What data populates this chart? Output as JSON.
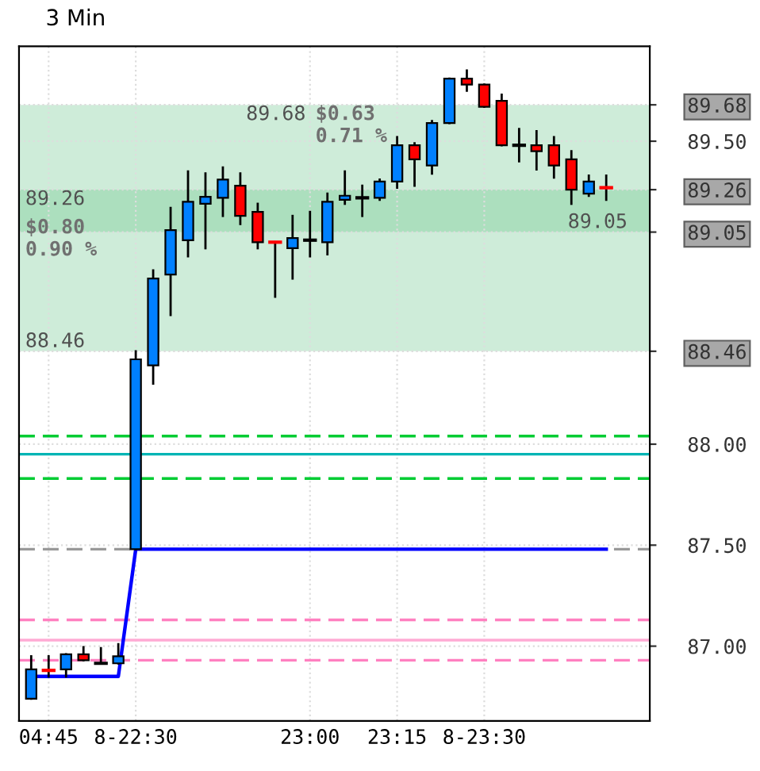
{
  "chart_data": {
    "type": "candlestick",
    "title": "3 Min",
    "categories": [
      null,
      "04:45",
      null,
      null,
      null,
      null,
      "8-22:30",
      null,
      null,
      null,
      null,
      null,
      null,
      null,
      null,
      null,
      "23:00",
      null,
      null,
      null,
      null,
      "23:15",
      null,
      null,
      null,
      null,
      "8-23:30",
      null,
      null,
      null,
      null,
      null,
      null,
      null
    ],
    "series": [
      {
        "type": "line",
        "color": "#0000ff",
        "values": [
          86.85,
          86.85,
          86.85,
          86.85,
          86.85,
          86.85,
          87.48,
          87.48,
          87.48,
          87.48,
          87.48,
          87.48,
          87.48,
          87.48,
          87.48,
          87.48,
          87.48,
          87.48,
          87.48,
          87.48,
          87.48,
          87.48,
          87.48,
          87.48,
          87.48,
          87.48,
          87.48,
          87.48,
          87.48,
          87.48,
          87.48,
          87.48,
          87.48,
          87.48
        ]
      },
      {
        "type": "candlestick",
        "ohlc": [
          [
            86.74,
            86.95,
            86.74,
            86.885
          ],
          [
            86.88,
            86.95,
            86.85,
            86.88
          ],
          [
            86.885,
            86.96,
            86.85,
            86.96
          ],
          [
            86.96,
            86.995,
            86.93,
            86.93
          ],
          [
            86.915,
            86.99,
            86.915,
            86.915
          ],
          [
            86.915,
            87.01,
            86.915,
            86.95
          ],
          [
            87.48,
            88.46,
            87.48,
            88.42
          ],
          [
            88.39,
            88.86,
            88.3,
            88.82
          ],
          [
            88.84,
            89.17,
            88.64,
            89.06
          ],
          [
            89.01,
            89.35,
            88.93,
            89.2
          ],
          [
            89.19,
            89.34,
            88.97,
            89.225
          ],
          [
            89.22,
            89.37,
            89.13,
            89.31
          ],
          [
            89.28,
            89.34,
            89.09,
            89.13
          ],
          [
            89.15,
            89.19,
            88.97,
            89.0
          ],
          [
            89.0,
            89.0,
            88.73,
            89.0
          ],
          [
            88.97,
            89.13,
            88.82,
            89.02
          ],
          [
            89.01,
            89.15,
            88.93,
            89.01
          ],
          [
            89.0,
            89.24,
            88.94,
            89.2
          ],
          [
            89.21,
            89.35,
            89.19,
            89.23
          ],
          [
            89.22,
            89.28,
            89.13,
            89.22
          ],
          [
            89.22,
            89.31,
            89.21,
            89.3
          ],
          [
            89.3,
            89.52,
            89.27,
            89.48
          ],
          [
            89.48,
            89.49,
            89.28,
            89.41
          ],
          [
            89.38,
            89.6,
            89.34,
            89.59
          ],
          [
            89.59,
            89.81,
            89.59,
            89.81
          ],
          [
            89.81,
            89.85,
            89.75,
            89.78
          ],
          [
            89.78,
            89.78,
            89.67,
            89.67
          ],
          [
            89.7,
            89.73,
            89.48,
            89.48
          ],
          [
            89.48,
            89.56,
            89.4,
            89.48
          ],
          [
            89.48,
            89.55,
            89.36,
            89.45
          ],
          [
            89.48,
            89.52,
            89.32,
            89.38
          ],
          [
            89.41,
            89.45,
            89.19,
            89.26
          ],
          [
            89.24,
            89.33,
            89.23,
            89.3
          ],
          [
            89.27,
            89.33,
            89.21,
            89.27
          ]
        ],
        "colors": [
          "#0080ff",
          "#ff0000",
          "#0080ff",
          "#ff0000",
          "#000000",
          "#0080ff",
          "#0080ff",
          "#0080ff",
          "#0080ff",
          "#0080ff",
          "#0080ff",
          "#0080ff",
          "#ff0000",
          "#ff0000",
          "#ff0000",
          "#0080ff",
          "#000000",
          "#0080ff",
          "#0080ff",
          "#000000",
          "#0080ff",
          "#0080ff",
          "#ff0000",
          "#0080ff",
          "#0080ff",
          "#ff0000",
          "#ff0000",
          "#ff0000",
          "#000000",
          "#ff0000",
          "#ff0000",
          "#ff0000",
          "#0080ff",
          "#ff0000"
        ]
      }
    ],
    "ylim": [
      86.63,
      89.97
    ],
    "yticks": [
      {
        "value": 87.0,
        "label": "87.00"
      },
      {
        "value": 87.5,
        "label": "87.50"
      },
      {
        "value": 88.0,
        "label": "88.00"
      },
      {
        "value": 88.46,
        "label": "88.46"
      },
      {
        "value": 89.05,
        "label": "89.05"
      },
      {
        "value": 89.26,
        "label": "89.26"
      },
      {
        "value": 89.5,
        "label": "89.50"
      },
      {
        "value": 89.68,
        "label": "89.68"
      }
    ],
    "ref_lines": [
      {
        "axis": "y",
        "value": 88.04,
        "color": "#00cc33",
        "line_style": "dashed"
      },
      {
        "axis": "y",
        "value": 87.95,
        "color": "#00b4b4",
        "line_style": "solid"
      },
      {
        "axis": "y",
        "value": 87.83,
        "color": "#00cc33",
        "line_style": "dashed"
      },
      {
        "axis": "y",
        "value": 87.48,
        "color": "#999999",
        "line_style": "dashed"
      },
      {
        "axis": "y",
        "value": 87.13,
        "color": "#ff80c0",
        "line_style": "dashed"
      },
      {
        "axis": "y",
        "value": 87.03,
        "color": "#ffaad4",
        "line_style": "solid"
      },
      {
        "axis": "y",
        "value": 86.93,
        "color": "#ff80c0",
        "line_style": "dashed"
      }
    ],
    "bands": [
      {
        "axis": "y",
        "from": 88.46,
        "to": 89.26,
        "label": "$0.80\n0.90 %",
        "color": "#5cbf82"
      },
      {
        "axis": "y",
        "from": 89.05,
        "to": 89.68,
        "label": "$0.63\n0.71 %",
        "color": "#5cbf82"
      }
    ],
    "annotations": [
      {
        "text": "89.26",
        "y": 89.26
      },
      {
        "text": "88.46",
        "y": 88.46
      },
      {
        "text": "89.68",
        "y": 89.68
      },
      {
        "text": "89.05",
        "y": 89.05
      }
    ],
    "grid": true,
    "legend": false
  }
}
